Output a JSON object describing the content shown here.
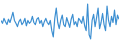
{
  "chart_data": {
    "type": "line",
    "x": [
      0,
      1,
      2,
      3,
      4,
      5,
      6,
      7,
      8,
      9,
      10,
      11,
      12,
      13,
      14,
      15,
      16,
      17,
      18,
      19,
      20,
      21,
      22,
      23,
      24,
      25,
      26,
      27,
      28,
      29,
      30,
      31,
      32,
      33,
      34,
      35,
      36,
      37,
      38,
      39,
      40,
      41,
      42,
      43,
      44,
      45,
      46,
      47,
      48,
      49,
      50,
      51,
      52,
      53,
      54,
      55,
      56,
      57,
      58,
      59,
      60,
      61,
      62,
      63,
      64,
      65,
      66,
      67,
      68,
      69,
      70,
      71,
      72,
      73,
      74,
      75,
      76,
      77,
      78,
      79
    ],
    "values": [
      55,
      48,
      60,
      52,
      45,
      58,
      50,
      62,
      75,
      55,
      48,
      40,
      52,
      58,
      45,
      50,
      60,
      42,
      55,
      48,
      52,
      65,
      50,
      45,
      58,
      62,
      48,
      55,
      40,
      52,
      60,
      50,
      45,
      55,
      30,
      15,
      60,
      85,
      50,
      35,
      55,
      68,
      45,
      40,
      62,
      50,
      38,
      58,
      70,
      45,
      52,
      40,
      60,
      55,
      48,
      65,
      42,
      30,
      95,
      20,
      10,
      55,
      70,
      40,
      62,
      85,
      35,
      50,
      72,
      45,
      30,
      90,
      55,
      40,
      65,
      50,
      80,
      45,
      68,
      58
    ],
    "xlim": [
      0,
      79
    ],
    "ylim": [
      0,
      100
    ],
    "color": "#3d8fd1",
    "tick_labels": false
  }
}
